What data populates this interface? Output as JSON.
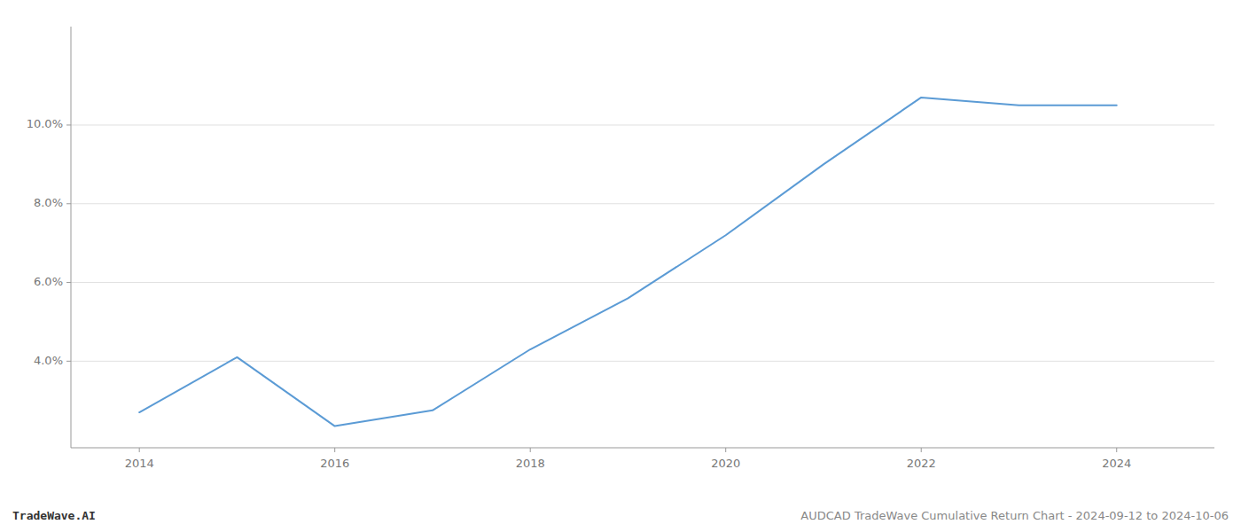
{
  "chart_data": {
    "type": "line",
    "x": [
      2014,
      2015,
      2016,
      2017,
      2018,
      2019,
      2020,
      2021,
      2022,
      2023,
      2024
    ],
    "values": [
      2.7,
      4.1,
      2.35,
      2.75,
      4.3,
      5.6,
      7.2,
      9.0,
      10.7,
      10.5,
      10.5
    ],
    "color": "#5b9bd5",
    "xlim": [
      2013.3,
      2025.0
    ],
    "ylim": [
      1.8,
      12.5
    ],
    "xticks": [
      2014,
      2016,
      2018,
      2020,
      2022,
      2024
    ],
    "yticks": [
      {
        "value": 4.0,
        "label": "4.0%"
      },
      {
        "value": 6.0,
        "label": "6.0%"
      },
      {
        "value": 8.0,
        "label": "8.0%"
      },
      {
        "value": 10.0,
        "label": "10.0%"
      }
    ],
    "grid": true,
    "annotations": [
      "TradeWave.AI",
      "AUDCAD TradeWave Cumulative Return Chart - 2024-09-12 to 2024-10-06"
    ]
  }
}
